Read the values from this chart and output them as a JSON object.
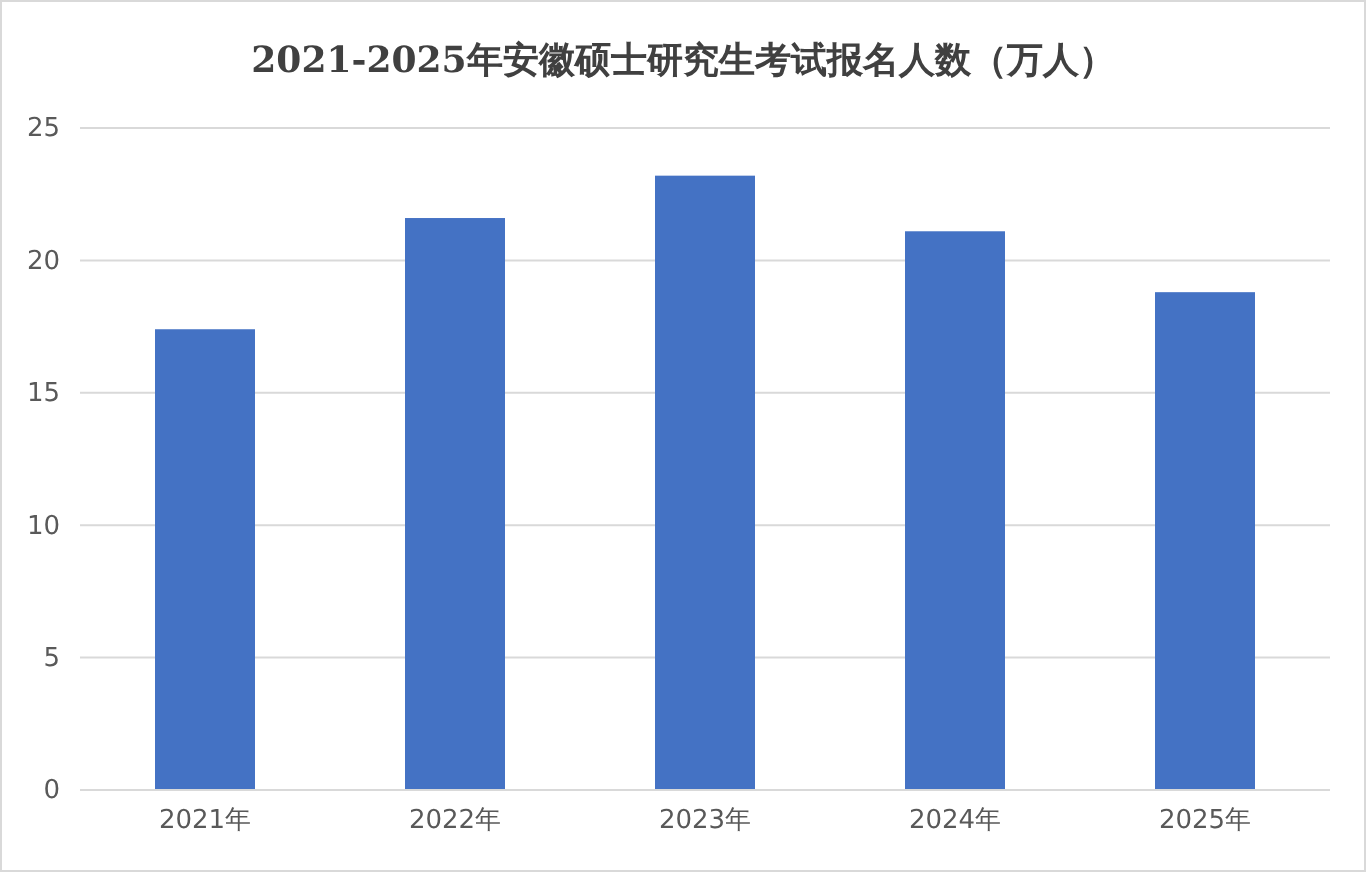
{
  "chart_data": {
    "type": "bar",
    "title": "2021-2025年安徽硕士研究生考试报名人数（万人）",
    "categories": [
      "2021年",
      "2022年",
      "2023年",
      "2024年",
      "2025年"
    ],
    "values": [
      17.4,
      21.6,
      23.2,
      21.1,
      18.8
    ],
    "color": "#4472c4",
    "ylim": [
      0,
      25
    ],
    "yticks": [
      0,
      5,
      10,
      15,
      20,
      25
    ],
    "grid": "y"
  }
}
